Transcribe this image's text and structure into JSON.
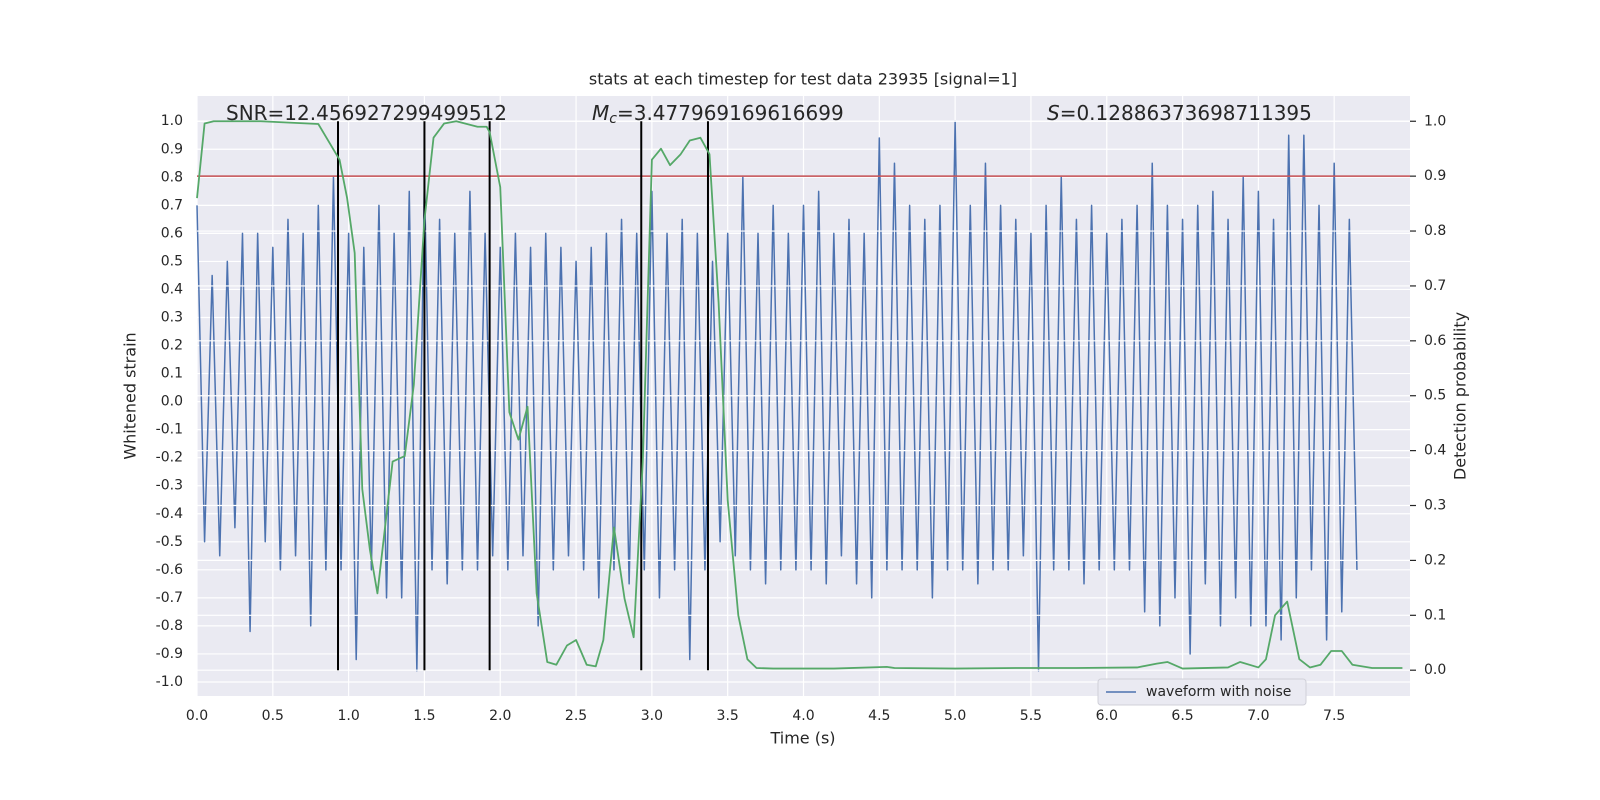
{
  "chart_data": {
    "type": "line",
    "title": "stats at each timestep for test data 23935 [signal=1]",
    "x_label": "Time (s)",
    "y_label": "Whitened strain",
    "y2_label": "Detection probability",
    "annotations": [
      {
        "text": "SNR=12.456927299499512"
      },
      {
        "symbol": "M",
        "subscript": "c",
        "text": "=3.477969169616699"
      },
      {
        "symbol": "S",
        "text": "=0.12886373698711395"
      }
    ],
    "xlim": [
      0,
      8
    ],
    "ylim": [
      -1.05,
      1.09
    ],
    "y2lim": [
      -0.047,
      1.046
    ],
    "xticks": [
      {
        "value": 0,
        "label": "0.0"
      },
      0.5,
      {
        "value": 1,
        "label": "1.0"
      },
      1.5,
      {
        "value": 2,
        "label": "2.0"
      },
      2.5,
      {
        "value": 3,
        "label": "3.0"
      },
      3.5,
      {
        "value": 4,
        "label": "4.0"
      },
      4.5,
      {
        "value": 5,
        "label": "5.0"
      },
      5.5,
      {
        "value": 6,
        "label": "6.0"
      },
      6.5,
      {
        "value": 7,
        "label": "7.0"
      },
      7.5
    ],
    "yticks": [
      {
        "value": -1,
        "label": "-1.0"
      },
      -0.9,
      -0.8,
      -0.7,
      -0.6,
      -0.5,
      -0.4,
      -0.3,
      -0.2,
      -0.1,
      {
        "value": 0,
        "label": "0.0"
      },
      0.1,
      0.2,
      0.3,
      0.4,
      0.5,
      0.6,
      0.7,
      0.8,
      0.9,
      {
        "value": 1,
        "label": "1.0"
      }
    ],
    "y2ticks": [
      {
        "value": 0,
        "label": "0.0"
      },
      0.1,
      0.2,
      0.3,
      0.4,
      0.5,
      0.6,
      0.7,
      0.8,
      0.9,
      {
        "value": 1,
        "label": "1.0"
      }
    ],
    "grid": true,
    "legend": "lower right",
    "threshold": {
      "value": 0.9,
      "axis": "y2",
      "color": "#c44e52"
    },
    "vlines": {
      "x": [
        0.93,
        1.5,
        1.93,
        2.93,
        3.37
      ],
      "y2range": [
        0,
        1
      ],
      "color": "#000000"
    },
    "series": [
      {
        "name": "waveform with noise",
        "color": "#4c72b0",
        "x": [
          0,
          0.05,
          0.1,
          0.15,
          0.2,
          0.25,
          0.3,
          0.35,
          0.4,
          0.45,
          0.5,
          0.55,
          0.6,
          0.65,
          0.7,
          0.75,
          0.8,
          0.85,
          0.9,
          0.95,
          1,
          1.05,
          1.1,
          1.15,
          1.2,
          1.25,
          1.3,
          1.35,
          1.4,
          1.45,
          1.5,
          1.55,
          1.6,
          1.65,
          1.7,
          1.75,
          1.8,
          1.85,
          1.9,
          1.95,
          2,
          2.05,
          2.1,
          2.15,
          2.2,
          2.25,
          2.3,
          2.35,
          2.4,
          2.45,
          2.5,
          2.55,
          2.6,
          2.65,
          2.7,
          2.75,
          2.8,
          2.85,
          2.9,
          2.95,
          3,
          3.05,
          3.1,
          3.15,
          3.2,
          3.25,
          3.3,
          3.35,
          3.4,
          3.45,
          3.5,
          3.55,
          3.6,
          3.65,
          3.7,
          3.75,
          3.8,
          3.85,
          3.9,
          3.95,
          4,
          4.05,
          4.1,
          4.15,
          4.2,
          4.25,
          4.3,
          4.35,
          4.4,
          4.45,
          4.5,
          4.55,
          4.6,
          4.65,
          4.7,
          4.75,
          4.8,
          4.85,
          4.9,
          4.95,
          5,
          5.05,
          5.1,
          5.15,
          5.2,
          5.25,
          5.3,
          5.35,
          5.4,
          5.45,
          5.5,
          5.55,
          5.6,
          5.65,
          5.7,
          5.75,
          5.8,
          5.85,
          5.9,
          5.95,
          6,
          6.05,
          6.1,
          6.15,
          6.2,
          6.25,
          6.3,
          6.35,
          6.4,
          6.45,
          6.5,
          6.55,
          6.6,
          6.65,
          6.7,
          6.75,
          6.8,
          6.85,
          6.9,
          6.95,
          7,
          7.05,
          7.1,
          7.15,
          7.2,
          7.25,
          7.3,
          7.35,
          7.4,
          7.45,
          7.5,
          7.55,
          7.6,
          7.65
        ],
        "values": [
          0.7,
          -0.5,
          0.45,
          -0.55,
          0.5,
          -0.45,
          0.6,
          -0.82,
          0.6,
          -0.5,
          0.55,
          -0.6,
          0.65,
          -0.55,
          0.6,
          -0.8,
          0.7,
          -0.6,
          0.8,
          -0.6,
          0.6,
          -0.92,
          0.55,
          -0.6,
          0.7,
          -0.7,
          0.6,
          -0.7,
          0.75,
          -0.96,
          0.8,
          -0.6,
          0.65,
          -0.65,
          0.6,
          -0.6,
          0.75,
          -0.6,
          0.6,
          -0.55,
          0.55,
          -0.6,
          0.6,
          -0.55,
          0.55,
          -0.8,
          0.6,
          -0.6,
          0.55,
          -0.55,
          0.5,
          -0.6,
          0.55,
          -0.7,
          0.6,
          -0.6,
          0.65,
          -0.65,
          0.6,
          -0.6,
          0.75,
          -0.7,
          0.6,
          -0.6,
          0.65,
          -0.92,
          0.6,
          -0.6,
          0.5,
          -0.5,
          0.6,
          -0.55,
          0.8,
          -0.6,
          0.6,
          -0.65,
          0.7,
          -0.6,
          0.6,
          -0.6,
          0.7,
          -0.6,
          0.75,
          -0.65,
          0.6,
          -0.55,
          0.65,
          -0.65,
          0.6,
          -0.7,
          0.94,
          -0.6,
          0.85,
          -0.6,
          0.7,
          -0.6,
          0.65,
          -0.7,
          0.7,
          -0.6,
          1.0,
          -0.6,
          0.7,
          -0.65,
          0.85,
          -0.6,
          0.7,
          -0.6,
          0.65,
          -0.55,
          0.6,
          -0.96,
          0.7,
          -0.6,
          0.8,
          -0.6,
          0.65,
          -0.65,
          0.7,
          -0.6,
          0.6,
          -0.6,
          0.65,
          -0.6,
          0.7,
          -0.75,
          0.85,
          -0.8,
          0.7,
          -0.7,
          0.65,
          -0.9,
          0.7,
          -0.65,
          0.75,
          -0.8,
          0.65,
          -0.7,
          0.8,
          -0.8,
          0.75,
          -0.8,
          0.65,
          -0.85,
          0.95,
          -0.7,
          0.95,
          -0.6,
          0.7,
          -0.85,
          0.85,
          -0.75,
          0.65,
          -0.6
        ]
      },
      {
        "color": "#55a868",
        "axis": "y2",
        "x": [
          0,
          0.05,
          0.11,
          0.42,
          0.8,
          0.94,
          0.99,
          1.04,
          1.09,
          1.14,
          1.19,
          1.29,
          1.37,
          1.43,
          1.5,
          1.56,
          1.63,
          1.71,
          1.85,
          1.91,
          1.93,
          2.0,
          2.06,
          2.12,
          2.18,
          2.24,
          2.31,
          2.37,
          2.44,
          2.5,
          2.57,
          2.63,
          2.68,
          2.75,
          2.82,
          2.88,
          2.94,
          3.0,
          3.06,
          3.12,
          3.19,
          3.25,
          3.32,
          3.38,
          3.44,
          3.5,
          3.57,
          3.63,
          3.69,
          3.8,
          4.2,
          4.55,
          4.6,
          5.0,
          5.4,
          5.8,
          6.2,
          6.33,
          6.4,
          6.5,
          6.8,
          6.88,
          7.0,
          7.05,
          7.11,
          7.19,
          7.27,
          7.34,
          7.41,
          7.48,
          7.55,
          7.62,
          7.75,
          7.95
        ],
        "values": [
          0.86,
          0.996,
          1.0,
          1.0,
          0.995,
          0.93,
          0.86,
          0.76,
          0.33,
          0.22,
          0.14,
          0.38,
          0.39,
          0.52,
          0.82,
          0.97,
          0.996,
          1.0,
          0.99,
          0.99,
          0.98,
          0.88,
          0.47,
          0.42,
          0.48,
          0.14,
          0.015,
          0.01,
          0.045,
          0.055,
          0.01,
          0.007,
          0.055,
          0.26,
          0.13,
          0.06,
          0.38,
          0.93,
          0.95,
          0.92,
          0.94,
          0.965,
          0.97,
          0.94,
          0.67,
          0.31,
          0.1,
          0.02,
          0.004,
          0.003,
          0.003,
          0.006,
          0.004,
          0.003,
          0.004,
          0.004,
          0.005,
          0.012,
          0.015,
          0.003,
          0.005,
          0.015,
          0.005,
          0.02,
          0.1,
          0.125,
          0.02,
          0.005,
          0.01,
          0.035,
          0.035,
          0.01,
          0.004,
          0.004
        ]
      }
    ]
  }
}
